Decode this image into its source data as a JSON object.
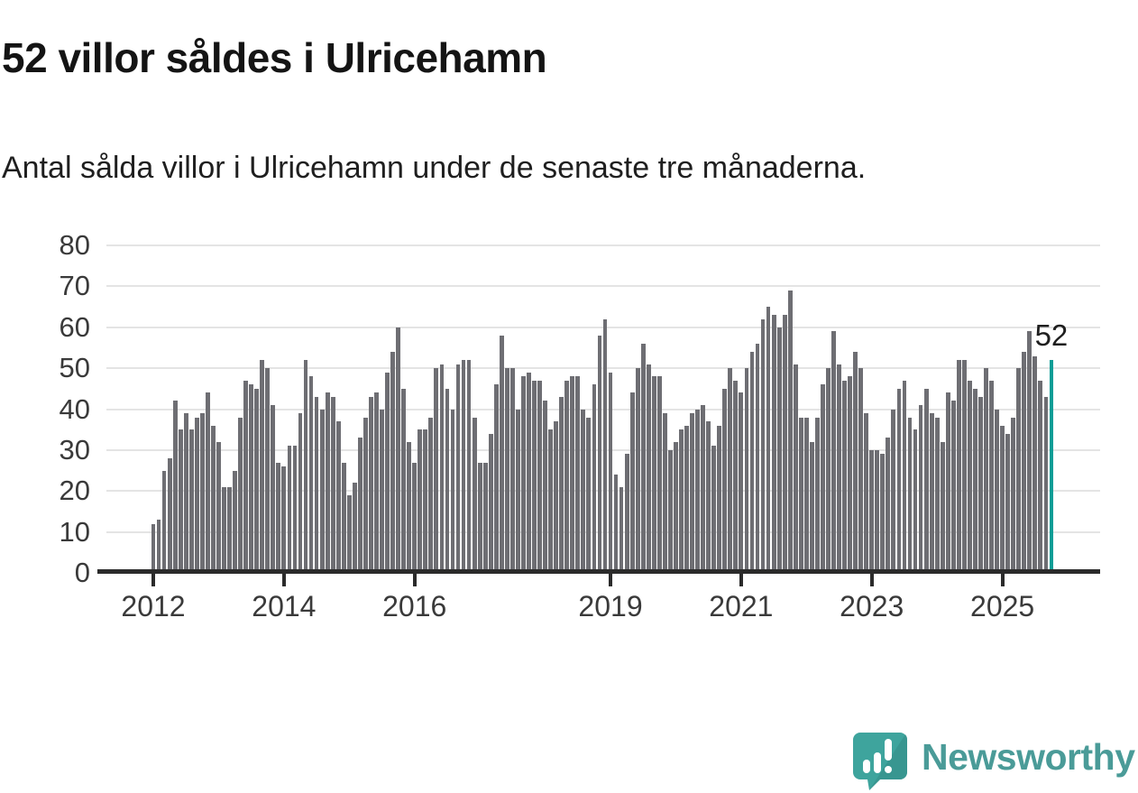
{
  "header": {
    "title": "52 villor såldes i Ulricehamn",
    "subtitle": "Antal sålda villor i Ulricehamn under de senaste tre månaderna."
  },
  "chart_data": {
    "type": "bar",
    "title": "52 villor såldes i Ulricehamn",
    "subtitle": "Antal sålda villor i Ulricehamn under de senaste tre månaderna.",
    "unit": "antal sålda villor (rullande 3 månader)",
    "x_start": "2012-01",
    "x_end": "2025-10",
    "frequency": "monthly",
    "values": [
      12,
      13,
      25,
      28,
      42,
      35,
      39,
      35,
      38,
      39,
      44,
      36,
      32,
      21,
      21,
      25,
      38,
      47,
      46,
      45,
      52,
      50,
      41,
      27,
      26,
      31,
      31,
      39,
      52,
      48,
      43,
      40,
      44,
      43,
      37,
      27,
      19,
      22,
      33,
      38,
      43,
      44,
      40,
      49,
      54,
      60,
      45,
      32,
      27,
      35,
      35,
      38,
      50,
      51,
      45,
      40,
      51,
      52,
      52,
      38,
      27,
      27,
      34,
      46,
      58,
      50,
      50,
      40,
      48,
      49,
      47,
      47,
      42,
      35,
      37,
      43,
      47,
      48,
      48,
      40,
      38,
      46,
      58,
      62,
      49,
      24,
      21,
      29,
      44,
      50,
      56,
      51,
      48,
      48,
      39,
      30,
      32,
      35,
      36,
      39,
      40,
      41,
      37,
      31,
      36,
      45,
      50,
      47,
      44,
      50,
      54,
      56,
      62,
      65,
      63,
      60,
      63,
      69,
      51,
      38,
      38,
      32,
      38,
      46,
      50,
      59,
      51,
      47,
      48,
      54,
      50,
      39,
      30,
      30,
      29,
      33,
      40,
      45,
      47,
      38,
      35,
      41,
      45,
      39,
      38,
      32,
      44,
      42,
      52,
      52,
      47,
      45,
      43,
      50,
      47,
      40,
      36,
      34,
      38,
      50,
      54,
      59,
      53,
      47,
      43,
      52
    ],
    "highlight_last": true,
    "last_value": 52,
    "last_value_label": "52",
    "ylim": [
      0,
      80
    ],
    "yticks": [
      "0",
      "10",
      "20",
      "30",
      "40",
      "50",
      "60",
      "70",
      "80"
    ],
    "xticks": [
      {
        "label": "2012",
        "index": 0
      },
      {
        "label": "2014",
        "index": 24
      },
      {
        "label": "2016",
        "index": 48
      },
      {
        "label": "2019",
        "index": 84
      },
      {
        "label": "2021",
        "index": 108
      },
      {
        "label": "2023",
        "index": 132
      },
      {
        "label": "2025",
        "index": 156
      }
    ],
    "grid": true,
    "legend": null,
    "bar_color": "#6e6e73",
    "highlight_color": "#0a9d96",
    "gridline_color": "#e4e4e4",
    "axis_color": "#2b2b2b"
  },
  "footer": {
    "brand": "Newsworthy",
    "logo_icon": "bar-chart-speech-bubble",
    "logo_mark_color": "#3ea49d",
    "logo_fold_color": "#338b85",
    "logo_text_color": "#4a9b98"
  }
}
